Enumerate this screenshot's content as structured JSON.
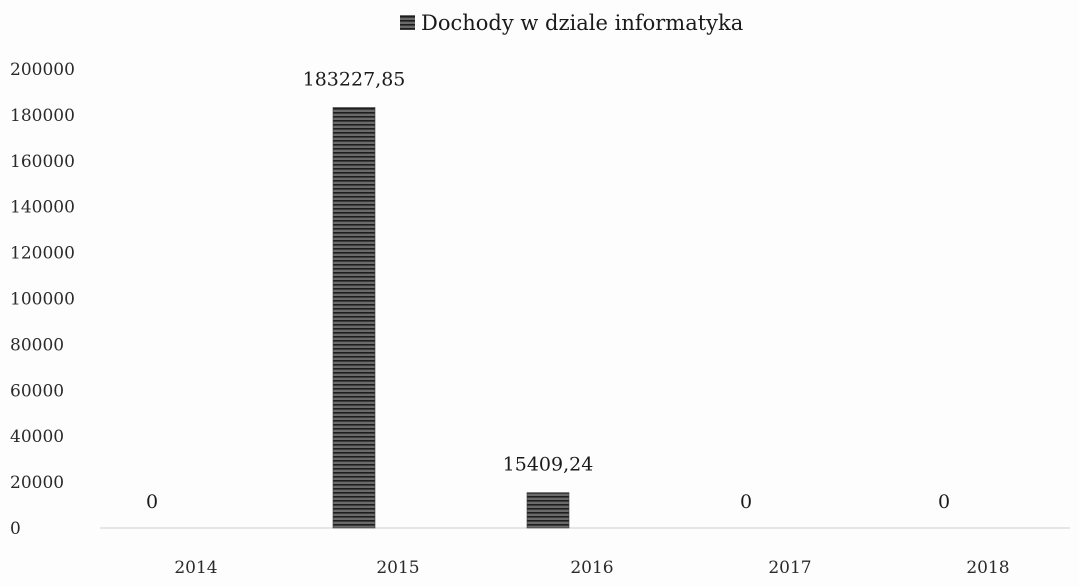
{
  "chart_data": {
    "type": "bar",
    "title": "",
    "xlabel": "",
    "ylabel": "",
    "ylim": [
      0,
      200000
    ],
    "yticks": [
      "0",
      "20000",
      "40000",
      "60000",
      "80000",
      "100000",
      "120000",
      "140000",
      "160000",
      "180000",
      "200000"
    ],
    "categories": [
      "2014",
      "2015",
      "2016",
      "2017",
      "2018"
    ],
    "series": [
      {
        "name": "Dochody w dziale informatyka",
        "values": [
          0,
          183227.85,
          15409.24,
          0,
          0
        ],
        "data_labels": [
          "0",
          "183227,85",
          "15409,24",
          "0",
          "0"
        ],
        "color": "#4a4a4a"
      }
    ],
    "legend": "top-center",
    "grid": false
  }
}
